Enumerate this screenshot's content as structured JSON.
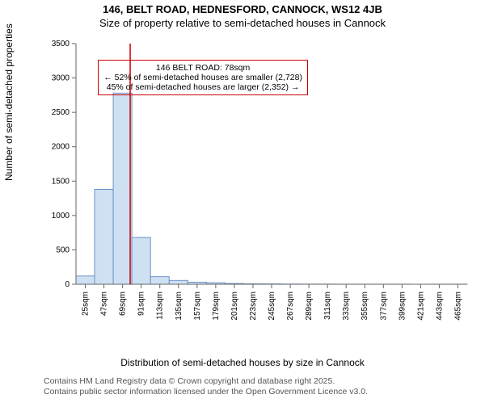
{
  "title_line1": "146, BELT ROAD, HEDNESFORD, CANNOCK, WS12 4JB",
  "title_line2": "Size of property relative to semi-detached houses in Cannock",
  "ylabel": "Number of semi-detached properties",
  "xlabel": "Distribution of semi-detached houses by size in Cannock",
  "footnote_line1": "Contains HM Land Registry data © Crown copyright and database right 2025.",
  "footnote_line2": "Contains public sector information licensed under the Open Government Licence v3.0.",
  "chart": {
    "type": "histogram",
    "background_color": "#ffffff",
    "axis_color": "#666666",
    "bar_fill": "#cfe0f3",
    "bar_stroke": "#6b93c4",
    "bar_stroke_width": 1,
    "marker_line_color": "#cc0000",
    "marker_line_width": 1.5,
    "annotation_border_color": "#cc0000",
    "tick_fontsize": 10,
    "label_fontsize": 12,
    "title_fontsize": 13,
    "ylim": [
      0,
      3500
    ],
    "ytick_step": 500,
    "x_tick_labels": [
      "25sqm",
      "47sqm",
      "69sqm",
      "91sqm",
      "113sqm",
      "135sqm",
      "157sqm",
      "179sqm",
      "201sqm",
      "223sqm",
      "245sqm",
      "267sqm",
      "289sqm",
      "311sqm",
      "333sqm",
      "355sqm",
      "377sqm",
      "399sqm",
      "421sqm",
      "443sqm",
      "465sqm"
    ],
    "x_tick_values": [
      25,
      47,
      69,
      91,
      113,
      135,
      157,
      179,
      201,
      223,
      245,
      267,
      289,
      311,
      333,
      355,
      377,
      399,
      421,
      443,
      465
    ],
    "x_range": [
      14,
      476
    ],
    "bars": [
      {
        "x": 25,
        "w": 22,
        "y": 120
      },
      {
        "x": 47,
        "w": 22,
        "y": 1380
      },
      {
        "x": 69,
        "w": 22,
        "y": 2780
      },
      {
        "x": 91,
        "w": 22,
        "y": 680
      },
      {
        "x": 113,
        "w": 22,
        "y": 110
      },
      {
        "x": 135,
        "w": 22,
        "y": 55
      },
      {
        "x": 157,
        "w": 22,
        "y": 30
      },
      {
        "x": 179,
        "w": 22,
        "y": 22
      },
      {
        "x": 201,
        "w": 22,
        "y": 11
      },
      {
        "x": 223,
        "w": 22,
        "y": 6
      },
      {
        "x": 245,
        "w": 22,
        "y": 5
      },
      {
        "x": 267,
        "w": 22,
        "y": 3
      },
      {
        "x": 289,
        "w": 22,
        "y": 2
      },
      {
        "x": 311,
        "w": 22,
        "y": 2
      },
      {
        "x": 333,
        "w": 22,
        "y": 1
      },
      {
        "x": 355,
        "w": 22,
        "y": 1
      },
      {
        "x": 377,
        "w": 22,
        "y": 1
      },
      {
        "x": 399,
        "w": 22,
        "y": 1
      },
      {
        "x": 421,
        "w": 22,
        "y": 0
      },
      {
        "x": 443,
        "w": 22,
        "y": 1
      },
      {
        "x": 465,
        "w": 22,
        "y": 1
      }
    ],
    "marker_x": 78,
    "annotation": {
      "line1": "146 BELT ROAD: 78sqm",
      "line2": "← 52% of semi-detached houses are smaller (2,728)",
      "line3": "45% of semi-detached houses are larger (2,352) →",
      "top_value": 3270,
      "left_value": 40
    }
  }
}
